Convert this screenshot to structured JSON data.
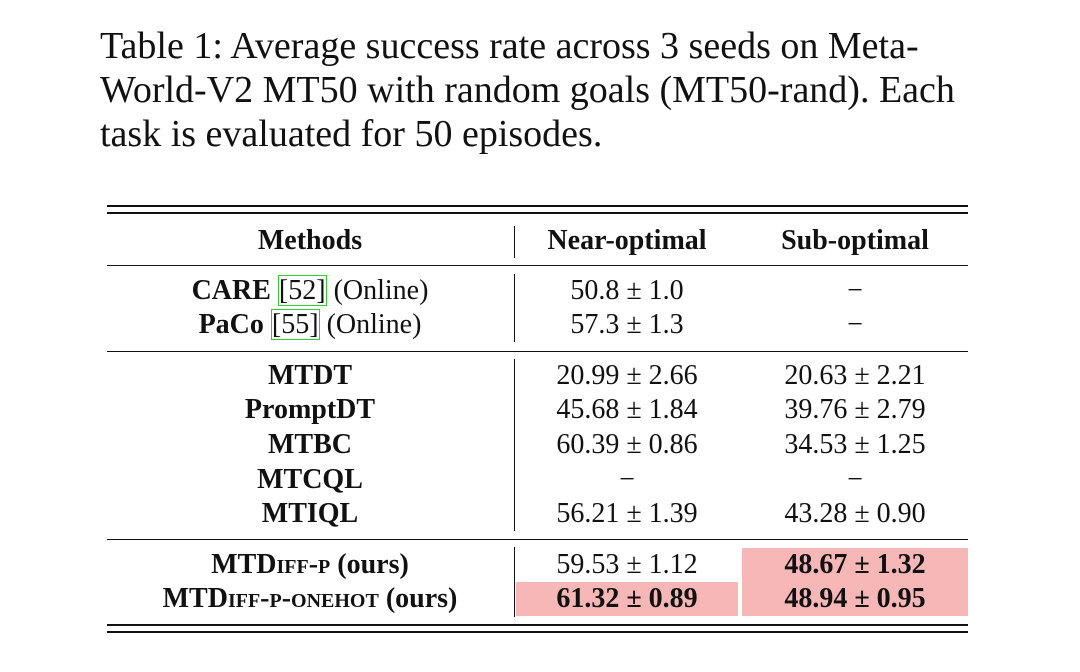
{
  "caption": "Table 1: Average success rate across 3 seeds on Meta-World-V2 MT50 with random goals (MT50-rand). Each task is evaluated for 50 episodes.",
  "colors": {
    "highlight": "#f7b7b7",
    "citation_box": "#33cc33"
  },
  "header": {
    "methods": "Methods",
    "near": "Near-optimal",
    "sub": "Sub-optimal"
  },
  "online": [
    {
      "name": "CARE",
      "ref": "[52]",
      "suffix": "(Online)",
      "near": "50.8 ± 1.0",
      "sub": "−"
    },
    {
      "name": "PaCo",
      "ref": "[55]",
      "suffix": "(Online)",
      "near": "57.3 ± 1.3",
      "sub": "−"
    }
  ],
  "baselines": [
    {
      "name": "MTDT",
      "near": "20.99 ± 2.66",
      "sub": "20.63 ± 2.21"
    },
    {
      "name": "PromptDT",
      "near": "45.68 ± 1.84",
      "sub": "39.76 ± 2.79"
    },
    {
      "name": "MTBC",
      "near": "60.39 ± 0.86",
      "sub": "34.53 ± 1.25"
    },
    {
      "name": "MTCQL",
      "near": "−",
      "sub": "−"
    },
    {
      "name": "MTIQL",
      "near": "56.21 ± 1.39",
      "sub": "43.28 ± 0.90"
    }
  ],
  "ours": [
    {
      "prefix": "MTD",
      "smallcaps": "iff-p",
      "suffix": " (ours)",
      "near": "59.53 ± 1.12",
      "sub": "48.67 ± 1.32"
    },
    {
      "prefix": "MTD",
      "smallcaps": "iff-p-onehot",
      "suffix": " (ours)",
      "near": "61.32 ± 0.89",
      "sub": "48.94 ± 0.95"
    }
  ]
}
